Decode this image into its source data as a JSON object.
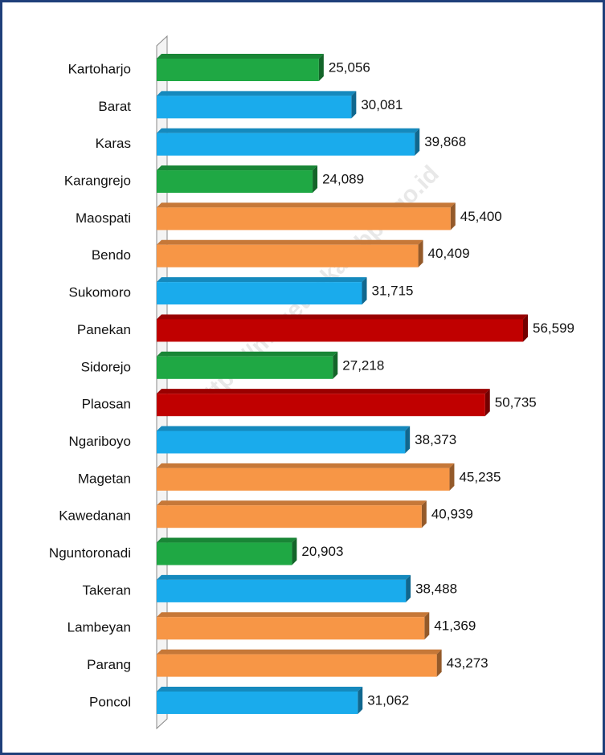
{
  "chart_data": {
    "type": "bar",
    "orientation": "horizontal",
    "categories": [
      "Kartoharjo",
      "Barat",
      "Karas",
      "Karangrejo",
      "Maospati",
      "Bendo",
      "Sukomoro",
      "Panekan",
      "Sidorejo",
      "Plaosan",
      "Ngariboyo",
      "Magetan",
      "Kawedanan",
      "Nguntoronadi",
      "Takeran",
      "Lambeyan",
      "Parang",
      "Poncol"
    ],
    "values": [
      25056,
      30081,
      39868,
      24089,
      45400,
      40409,
      31715,
      56599,
      27218,
      50735,
      38373,
      45235,
      40939,
      20903,
      38488,
      41369,
      43273,
      31062
    ],
    "value_labels": [
      "25,056",
      "30,081",
      "39,868",
      "24,089",
      "45,400",
      "40,409",
      "31,715",
      "56,599",
      "27,218",
      "50,735",
      "38,373",
      "45,235",
      "40,939",
      "20,903",
      "38,488",
      "41,369",
      "43,273",
      "31,062"
    ],
    "colors": [
      "#1fa844",
      "#1aabec",
      "#1aabec",
      "#1fa844",
      "#f79646",
      "#f79646",
      "#1aabec",
      "#c00000",
      "#1fa844",
      "#c00000",
      "#1aabec",
      "#f79646",
      "#f79646",
      "#1fa844",
      "#1aabec",
      "#f79646",
      "#f79646",
      "#1aabec"
    ],
    "watermark": "https://magetankab.bps.go.id"
  }
}
